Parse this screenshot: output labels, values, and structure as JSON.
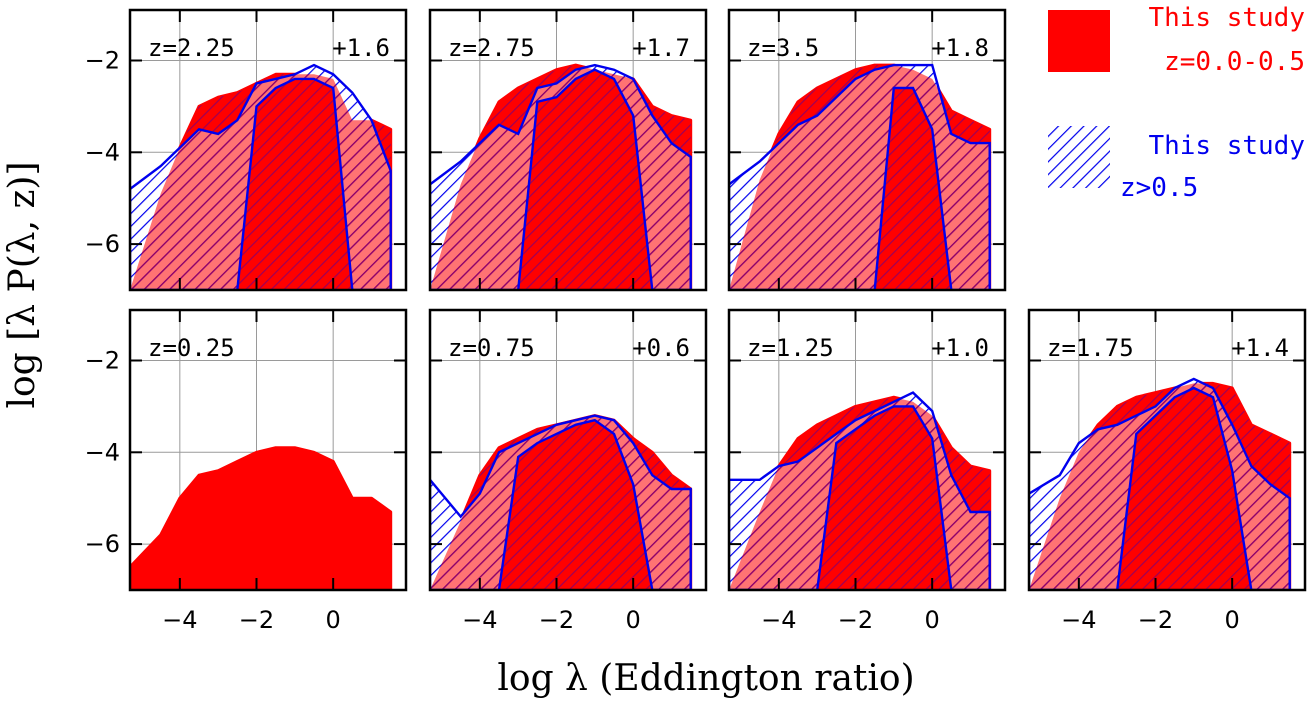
{
  "chart_data": {
    "type": "area",
    "xlabel": "log λ  (Eddington ratio)",
    "ylabel": "log [λ P(λ, z)]",
    "xlim": [
      -5.3,
      1.9
    ],
    "ylim": [
      -7,
      -0.9
    ],
    "xticks": [
      -4,
      -2,
      0
    ],
    "yticks": [
      -6,
      -4,
      -2
    ],
    "grid": true,
    "colors": {
      "red": "#ff0000",
      "blue": "#0000ee"
    },
    "legend": {
      "position": "top-right",
      "entries": [
        {
          "label_line1": "This study",
          "label_line2": "z=0.0-0.5",
          "color": "#ff0000",
          "style": "solid"
        },
        {
          "label_line1": "This study",
          "label_line2": "z>0.5",
          "color": "#0000ee",
          "style": "hatched"
        }
      ]
    },
    "panels": [
      {
        "z_label": "z=2.25",
        "offset_label": "+1.6",
        "red": {
          "x": [
            -5.3,
            -4.5,
            -4.0,
            -3.5,
            -3.0,
            -2.5,
            -2.0,
            -1.5,
            -1.0,
            -0.5,
            0.0,
            0.5,
            0.8,
            1.0,
            1.5,
            1.5
          ],
          "upper": [
            -7.0,
            -4.9,
            -3.9,
            -3.0,
            -2.8,
            -2.7,
            -2.5,
            -2.3,
            -2.3,
            -2.3,
            -2.4,
            -3.3,
            -3.3,
            -3.3,
            -3.5,
            -3.5
          ],
          "lower": [
            -7.0,
            -7.0,
            -7.0,
            -7.0,
            -7.0,
            -7.0,
            -7.0,
            -7.0,
            -7.0,
            -7.0,
            -7.0,
            -7.0,
            -7.0,
            -7.0,
            -7.0,
            -7.0
          ],
          "lower_curve": [
            -7.0,
            -7.0,
            -7.0,
            -4.2,
            -3.9,
            -3.8,
            -3.5,
            -3.2,
            -2.8,
            -2.5,
            -2.5,
            -7.0,
            -7.0,
            -7.0,
            -7.0,
            -7.0
          ]
        },
        "blue": {
          "x": [
            -5.3,
            -4.5,
            -3.5,
            -3.0,
            -2.5,
            -2.0,
            -1.5,
            -1.0,
            -0.5,
            0.0,
            0.5,
            1.0,
            1.5
          ],
          "upper": [
            -4.8,
            -4.3,
            -3.5,
            -3.6,
            -3.3,
            -2.5,
            -2.4,
            -2.3,
            -2.1,
            -2.3,
            -2.7,
            -3.3,
            -4.4
          ],
          "lower": [
            -7.0,
            -7.0,
            -7.0,
            -7.0,
            -7.0,
            -3.0,
            -2.6,
            -2.4,
            -2.4,
            -2.6,
            -7.0,
            -7.0,
            -7.0
          ]
        }
      },
      {
        "z_label": "z=2.75",
        "offset_label": "+1.7",
        "red": {
          "x": [
            -5.3,
            -4.5,
            -4.0,
            -3.5,
            -3.0,
            -2.5,
            -2.0,
            -1.5,
            -1.0,
            -0.5,
            0.0,
            0.5,
            1.0,
            1.5
          ],
          "upper": [
            -7.0,
            -4.7,
            -3.7,
            -2.9,
            -2.6,
            -2.4,
            -2.2,
            -2.1,
            -2.2,
            -2.3,
            -2.4,
            -3.0,
            -3.2,
            -3.3
          ],
          "lower": [
            -7.0,
            -7.0,
            -7.0,
            -7.0,
            -7.0,
            -7.0,
            -7.0,
            -7.0,
            -7.0,
            -7.0,
            -7.0,
            -7.0,
            -7.0,
            -7.0
          ]
        },
        "blue": {
          "x": [
            -5.3,
            -4.5,
            -3.5,
            -3.0,
            -2.5,
            -2.0,
            -1.5,
            -1.0,
            -0.5,
            0.0,
            0.5,
            1.0,
            1.5
          ],
          "upper": [
            -4.7,
            -4.2,
            -3.4,
            -3.6,
            -2.6,
            -2.5,
            -2.2,
            -2.1,
            -2.2,
            -2.4,
            -3.2,
            -3.8,
            -4.1
          ],
          "lower": [
            -7.0,
            -7.0,
            -7.0,
            -7.0,
            -2.9,
            -2.8,
            -2.4,
            -2.2,
            -2.4,
            -3.2,
            -7.0,
            -7.0,
            -7.0
          ]
        }
      },
      {
        "z_label": "z=3.5",
        "offset_label": "+1.8",
        "red": {
          "x": [
            -5.3,
            -4.5,
            -4.0,
            -3.5,
            -3.0,
            -2.5,
            -2.0,
            -1.5,
            -1.0,
            -0.5,
            0.0,
            0.5,
            1.0,
            1.5
          ],
          "upper": [
            -7.0,
            -4.6,
            -3.6,
            -2.9,
            -2.6,
            -2.4,
            -2.2,
            -2.1,
            -2.1,
            -2.2,
            -2.4,
            -3.1,
            -3.3,
            -3.5
          ],
          "lower": [
            -7.0,
            -7.0,
            -7.0,
            -7.0,
            -7.0,
            -7.0,
            -7.0,
            -7.0,
            -7.0,
            -7.0,
            -7.0,
            -7.0,
            -7.0,
            -7.0
          ]
        },
        "blue": {
          "x": [
            -5.3,
            -4.5,
            -3.5,
            -3.0,
            -2.5,
            -2.0,
            -1.5,
            -1.0,
            -0.5,
            0.0,
            0.5,
            1.0,
            1.5
          ],
          "upper": [
            -4.7,
            -4.2,
            -3.4,
            -3.2,
            -2.8,
            -2.4,
            -2.2,
            -2.1,
            -2.1,
            -2.1,
            -3.6,
            -3.8,
            -3.8
          ],
          "lower": [
            -7.0,
            -7.0,
            -7.0,
            -7.0,
            -7.0,
            -7.0,
            -7.0,
            -2.6,
            -2.6,
            -3.5,
            -7.0,
            -7.0,
            -7.0
          ]
        }
      },
      {
        "z_label": "z=0.25",
        "offset_label": "",
        "red": {
          "x": [
            -5.3,
            -4.5,
            -4.0,
            -3.5,
            -3.0,
            -2.5,
            -2.0,
            -1.5,
            -1.0,
            -0.5,
            0.0,
            0.5,
            1.0,
            1.5
          ],
          "upper": [
            -6.5,
            -5.8,
            -5.0,
            -4.5,
            -4.4,
            -4.2,
            -4.0,
            -3.9,
            -3.9,
            -4.0,
            -4.2,
            -5.0,
            -5.0,
            -5.3
          ],
          "lower": [
            -7.0,
            -7.0,
            -7.0,
            -7.0,
            -7.0,
            -7.0,
            -7.0,
            -7.0,
            -7.0,
            -7.0,
            -7.0,
            -7.0,
            -7.0,
            -7.0
          ]
        },
        "blue": null
      },
      {
        "z_label": "z=0.75",
        "offset_label": "+0.6",
        "red": {
          "x": [
            -5.3,
            -4.5,
            -4.0,
            -3.5,
            -3.0,
            -2.5,
            -2.0,
            -1.5,
            -1.0,
            -0.5,
            0.0,
            0.5,
            1.0,
            1.5
          ],
          "upper": [
            -7.0,
            -5.5,
            -4.5,
            -3.9,
            -3.7,
            -3.5,
            -3.4,
            -3.3,
            -3.2,
            -3.3,
            -3.7,
            -4.0,
            -4.5,
            -4.8
          ],
          "lower": [
            -7.0,
            -7.0,
            -7.0,
            -7.0,
            -7.0,
            -7.0,
            -7.0,
            -7.0,
            -7.0,
            -7.0,
            -7.0,
            -7.0,
            -7.0,
            -7.0
          ]
        },
        "blue": {
          "x": [
            -5.3,
            -4.5,
            -4.0,
            -3.5,
            -3.0,
            -2.5,
            -2.0,
            -1.5,
            -1.0,
            -0.5,
            0.0,
            0.5,
            1.0,
            1.5
          ],
          "upper": [
            -4.6,
            -5.4,
            -4.9,
            -4.0,
            -3.8,
            -3.6,
            -3.4,
            -3.3,
            -3.2,
            -3.3,
            -3.8,
            -4.5,
            -4.8,
            -4.8
          ],
          "lower": [
            -7.0,
            -7.0,
            -7.0,
            -7.0,
            -4.1,
            -3.8,
            -3.6,
            -3.4,
            -3.3,
            -3.6,
            -4.7,
            -7.0,
            -7.0,
            -7.0
          ]
        }
      },
      {
        "z_label": "z=1.25",
        "offset_label": "+1.0",
        "red": {
          "x": [
            -5.3,
            -4.5,
            -4.0,
            -3.5,
            -3.0,
            -2.5,
            -2.0,
            -1.5,
            -1.0,
            -0.5,
            0.0,
            0.5,
            1.0,
            1.5
          ],
          "upper": [
            -7.0,
            -5.3,
            -4.3,
            -3.7,
            -3.4,
            -3.2,
            -3.0,
            -2.9,
            -2.8,
            -2.9,
            -3.2,
            -3.9,
            -4.3,
            -4.4
          ],
          "lower": [
            -7.0,
            -7.0,
            -7.0,
            -7.0,
            -7.0,
            -7.0,
            -7.0,
            -7.0,
            -7.0,
            -7.0,
            -7.0,
            -7.0,
            -7.0,
            -7.0
          ]
        },
        "blue": {
          "x": [
            -5.3,
            -4.5,
            -4.0,
            -3.5,
            -3.0,
            -2.5,
            -2.0,
            -1.5,
            -1.0,
            -0.5,
            0.0,
            0.5,
            1.0,
            1.5
          ],
          "upper": [
            -4.6,
            -4.6,
            -4.3,
            -4.2,
            -3.9,
            -3.6,
            -3.3,
            -3.1,
            -2.9,
            -2.7,
            -3.1,
            -4.5,
            -5.3,
            -5.3
          ],
          "lower": [
            -7.0,
            -7.0,
            -7.0,
            -7.0,
            -7.0,
            -3.8,
            -3.5,
            -3.2,
            -3.0,
            -3.0,
            -3.7,
            -7.0,
            -7.0,
            -7.0
          ]
        }
      },
      {
        "z_label": "z=1.75",
        "offset_label": "+1.4",
        "red": {
          "x": [
            -5.3,
            -4.5,
            -4.0,
            -3.5,
            -3.0,
            -2.5,
            -2.0,
            -1.5,
            -1.0,
            -0.5,
            0.0,
            0.5,
            1.0,
            1.5
          ],
          "upper": [
            -7.0,
            -5.0,
            -4.0,
            -3.4,
            -3.0,
            -2.8,
            -2.7,
            -2.6,
            -2.5,
            -2.5,
            -2.6,
            -3.4,
            -3.6,
            -3.8
          ],
          "lower": [
            -7.0,
            -7.0,
            -7.0,
            -7.0,
            -7.0,
            -7.0,
            -7.0,
            -7.0,
            -7.0,
            -7.0,
            -7.0,
            -7.0,
            -7.0,
            -7.0
          ]
        },
        "blue": {
          "x": [
            -5.3,
            -4.5,
            -4.0,
            -3.5,
            -3.0,
            -2.5,
            -2.0,
            -1.5,
            -1.0,
            -0.5,
            0.0,
            0.5,
            1.0,
            1.5
          ],
          "upper": [
            -4.9,
            -4.5,
            -3.8,
            -3.5,
            -3.4,
            -3.2,
            -3.0,
            -2.6,
            -2.4,
            -2.6,
            -3.4,
            -4.3,
            -4.7,
            -5.0
          ],
          "lower": [
            -7.0,
            -7.0,
            -7.0,
            -7.0,
            -7.0,
            -3.6,
            -3.2,
            -2.8,
            -2.6,
            -2.8,
            -4.4,
            -7.0,
            -7.0,
            -7.0
          ]
        }
      }
    ]
  }
}
